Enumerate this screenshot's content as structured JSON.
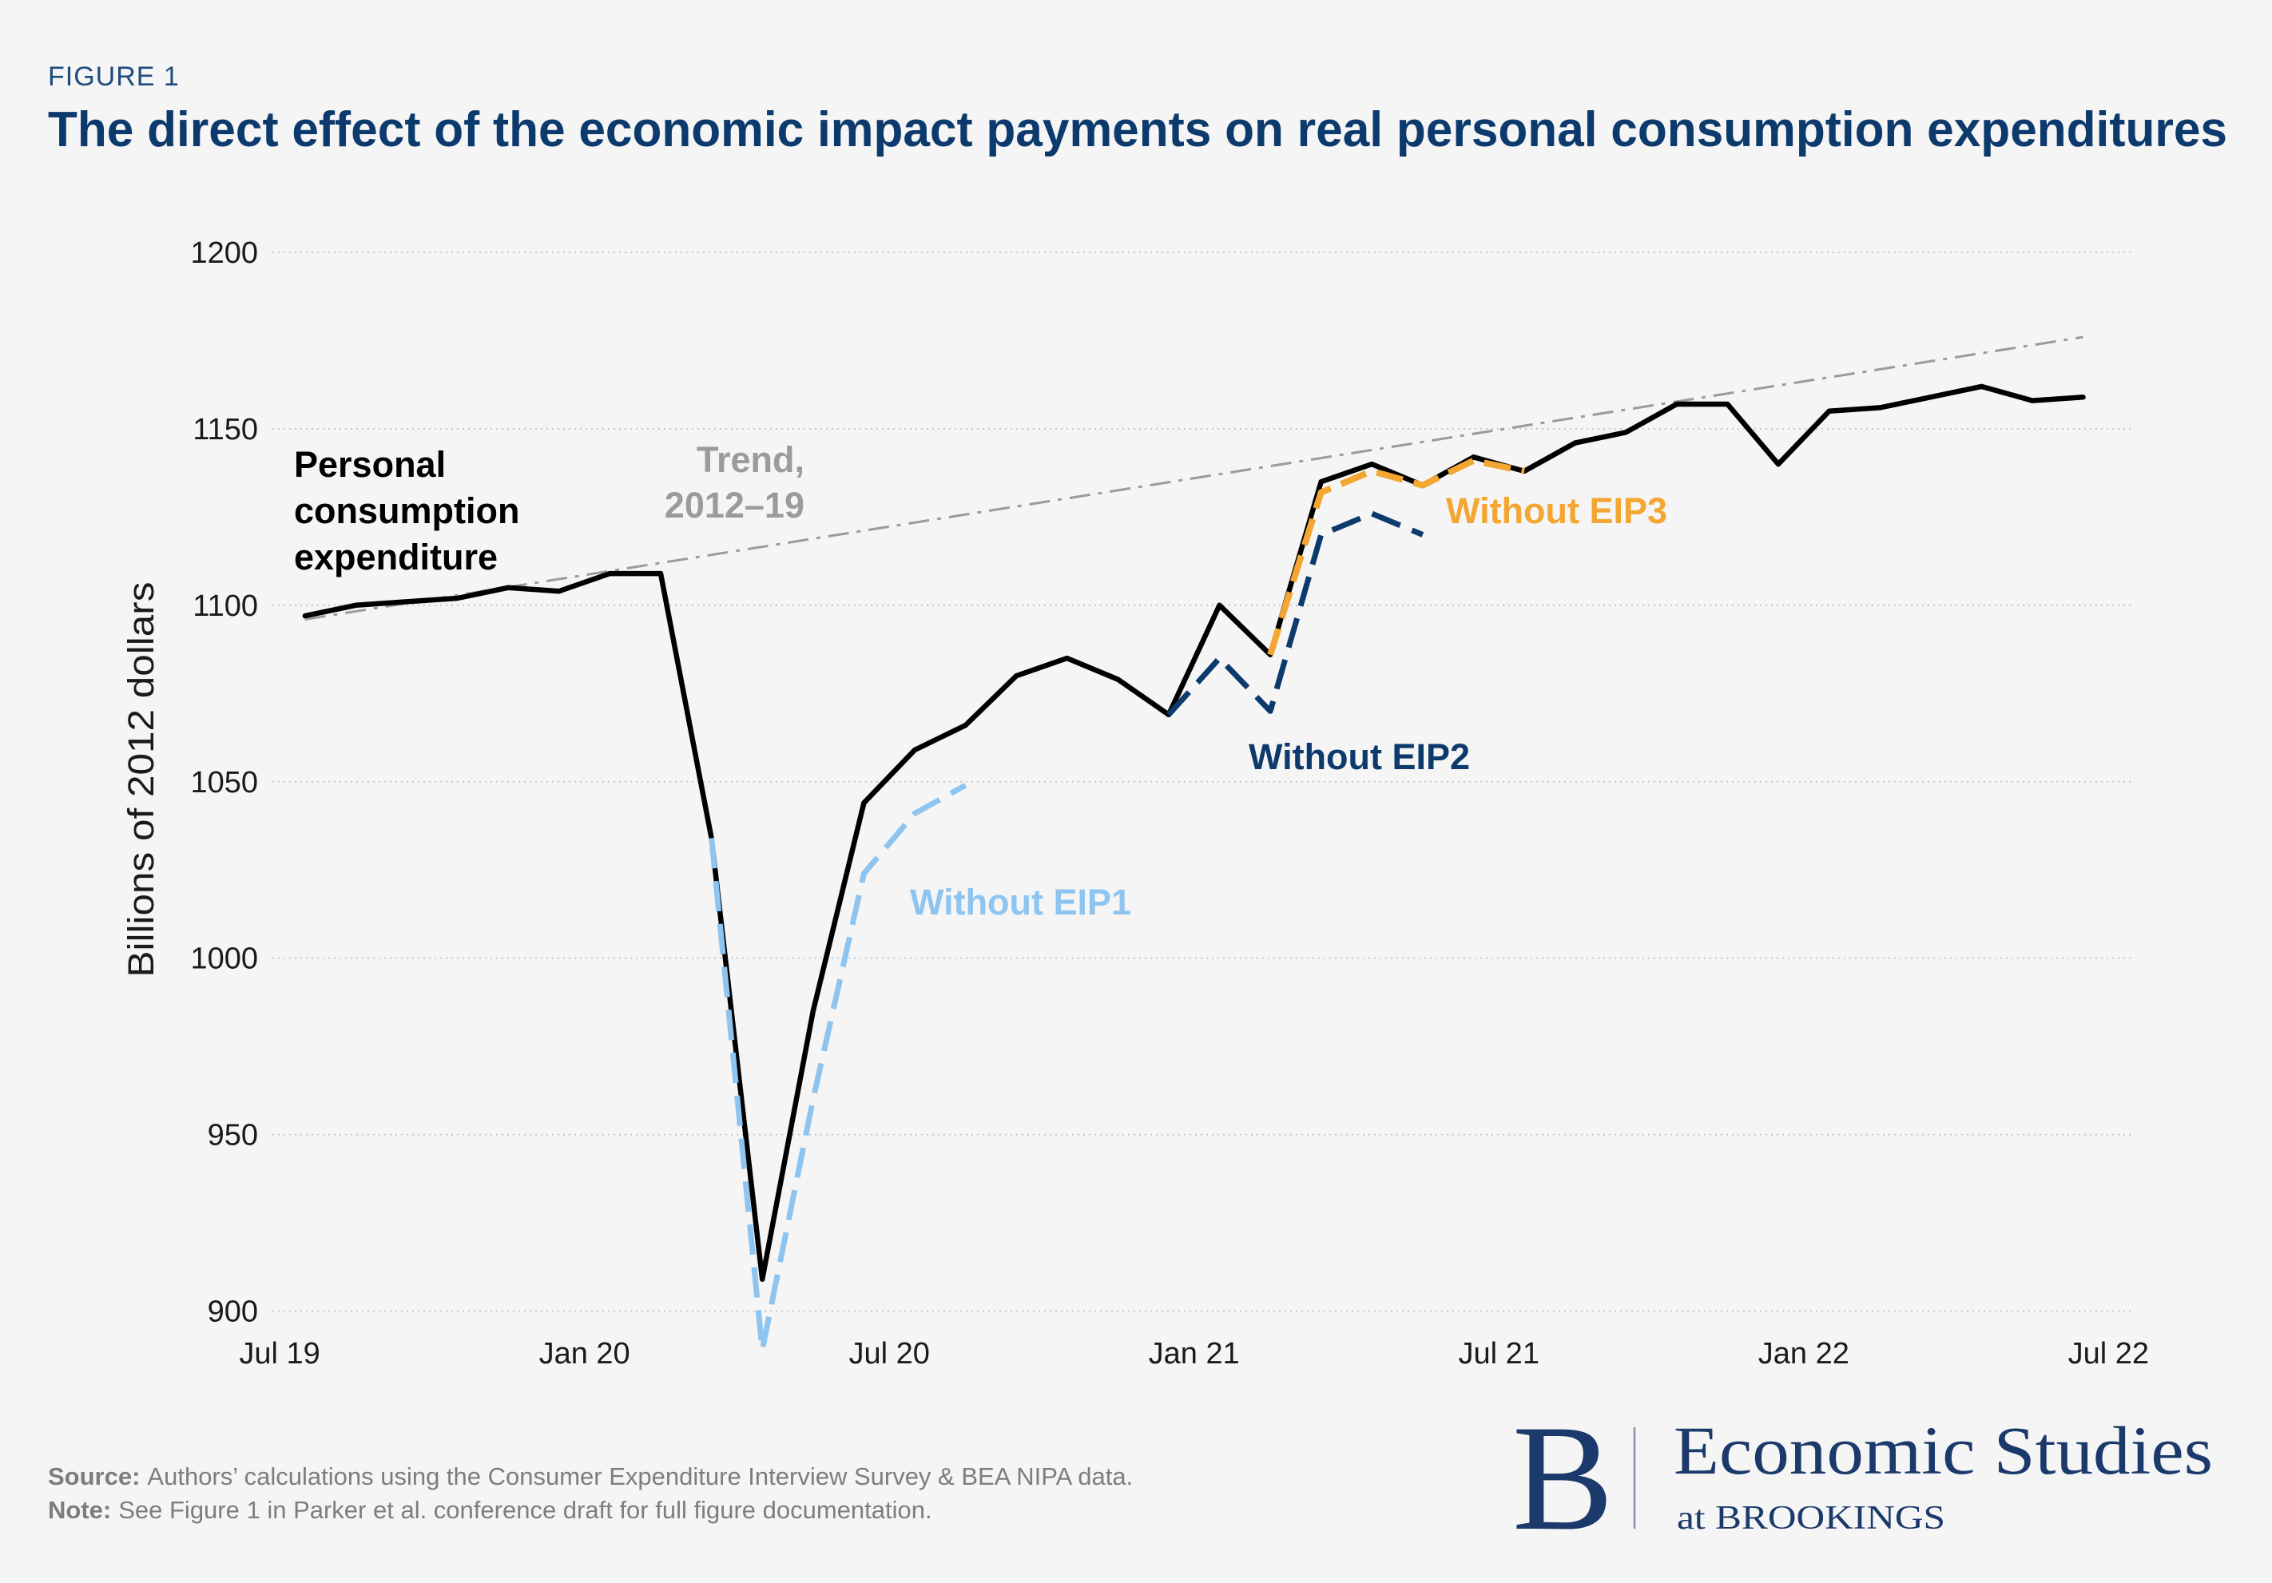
{
  "figure_label": "FIGURE 1",
  "colors": {
    "background": "#f5f5f5",
    "figure_label": "#1f4a7e",
    "title": "#0c3a6d",
    "axis_text": "#1a1a1a",
    "grid": "#c6c6c6",
    "footer": "#7d7d7d",
    "logo": "#1b3a6b",
    "logo_divider": "#8594aa"
  },
  "chart_data": {
    "type": "line",
    "title": "The direct effect of the economic impact payments on real personal consumption expenditures",
    "ylabel": "Billions of 2012 dollars",
    "ylim": [
      900,
      1200
    ],
    "yticks": [
      900,
      950,
      1000,
      1050,
      1100,
      1150,
      1200
    ],
    "xlim": [
      "2019-07",
      "2022-07"
    ],
    "xticks": [
      {
        "date": "2019-07",
        "label": "Jul 19"
      },
      {
        "date": "2020-01",
        "label": "Jan 20"
      },
      {
        "date": "2020-07",
        "label": "Jul 20"
      },
      {
        "date": "2021-01",
        "label": "Jan 21"
      },
      {
        "date": "2021-07",
        "label": "Jul 21"
      },
      {
        "date": "2022-01",
        "label": "Jan 22"
      },
      {
        "date": "2022-07",
        "label": "Jul 22"
      }
    ],
    "grid": true,
    "series": [
      {
        "name": "Personal consumption expenditure",
        "color": "#000000",
        "x": [
          "2019-07",
          "2019-08",
          "2019-09",
          "2019-10",
          "2019-11",
          "2019-12",
          "2020-01",
          "2020-02",
          "2020-03",
          "2020-04",
          "2020-05",
          "2020-06",
          "2020-07",
          "2020-08",
          "2020-09",
          "2020-10",
          "2020-11",
          "2020-12",
          "2021-01",
          "2021-02",
          "2021-03",
          "2021-04",
          "2021-05",
          "2021-06",
          "2021-07",
          "2021-08",
          "2021-09",
          "2021-10",
          "2021-11",
          "2021-12",
          "2022-01",
          "2022-02",
          "2022-03",
          "2022-04",
          "2022-05",
          "2022-06"
        ],
        "values": [
          1097,
          1100,
          1101,
          1102,
          1105,
          1104,
          1109,
          1109,
          1034,
          909,
          985,
          1044,
          1059,
          1066,
          1080,
          1085,
          1079,
          1069,
          1100,
          1086,
          1135,
          1140,
          1134,
          1142,
          1138,
          1146,
          1149,
          1157,
          1157,
          1140,
          1155,
          1156,
          1159,
          1162,
          1158,
          1159
        ]
      },
      {
        "name": "Trend, 2012–19",
        "color": "#9b9b9b",
        "x": [
          "2019-07",
          "2022-06"
        ],
        "values": [
          1096,
          1176
        ]
      },
      {
        "name": "Without EIP1",
        "color": "#8dc4f0",
        "x": [
          "2020-03",
          "2020-04",
          "2020-05",
          "2020-06",
          "2020-07",
          "2020-08"
        ],
        "values": [
          1034,
          889,
          960,
          1024,
          1041,
          1049
        ]
      },
      {
        "name": "Without EIP2",
        "color": "#0c3a6d",
        "x": [
          "2020-12",
          "2021-01",
          "2021-02",
          "2021-03",
          "2021-04",
          "2021-05"
        ],
        "values": [
          1069,
          1085,
          1070,
          1120,
          1126,
          1120
        ]
      },
      {
        "name": "Without EIP3",
        "color": "#f3a632",
        "x": [
          "2021-02",
          "2021-03",
          "2021-04",
          "2021-05",
          "2021-06",
          "2021-07"
        ],
        "values": [
          1086,
          1132,
          1138,
          1134,
          1141,
          1138
        ]
      }
    ]
  },
  "footer": {
    "source_label": "Source:",
    "source_text": "Authors’ calculations using the Consumer Expenditure Interview Survey & BEA NIPA data.",
    "note_label": "Note:",
    "note_text": "See Figure 1 in Parker et al. conference draft for full figure documentation."
  },
  "logo": {
    "mark": "B",
    "name": "Economic Studies",
    "subline": "at BROOKINGS"
  }
}
